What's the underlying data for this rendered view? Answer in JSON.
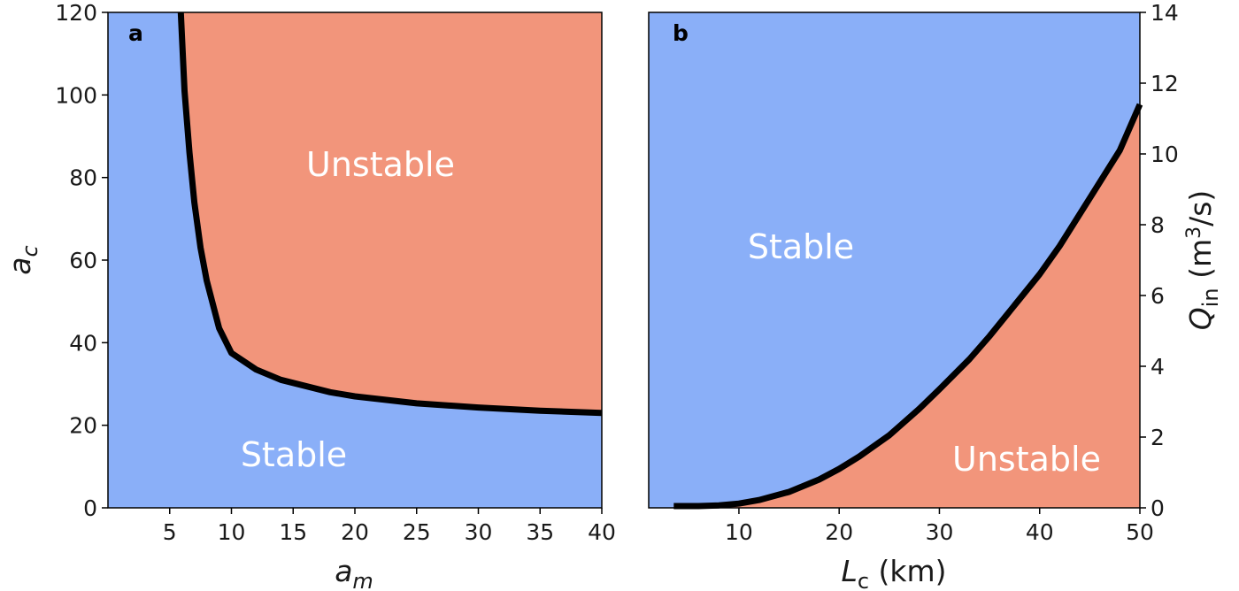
{
  "colors": {
    "stable": "#8aaff8",
    "unstable": "#f2957b",
    "boundary": "#000000"
  },
  "chart_data": [
    {
      "type": "area",
      "panel": "a",
      "xlabel_main": "a",
      "xlabel_sub": "m",
      "ylabel_main": "a",
      "ylabel_sub": "c",
      "xlim": [
        0,
        40
      ],
      "ylim": [
        0,
        120
      ],
      "xticks": [
        5,
        10,
        15,
        20,
        25,
        30,
        35,
        40
      ],
      "yticks": [
        0,
        20,
        40,
        60,
        80,
        100,
        120
      ],
      "y_axis_side": "left",
      "regions": [
        "Unstable",
        "Stable"
      ],
      "boundary": {
        "x": [
          5.9,
          6.2,
          6.6,
          7.0,
          7.5,
          8.0,
          9.0,
          10.0,
          12.0,
          14.0,
          16.0,
          18.0,
          20.0,
          25.0,
          30.0,
          35.0,
          40.0
        ],
        "y": [
          120,
          101,
          86,
          74,
          63,
          55,
          43.5,
          37.5,
          33.5,
          31.0,
          29.5,
          28.0,
          27.0,
          25.3,
          24.3,
          23.5,
          23.0
        ]
      }
    },
    {
      "type": "area",
      "panel": "b",
      "xlabel_main": "L",
      "xlabel_sub": "c",
      "xlabel_unit": " (km)",
      "ylabel_main": "Q",
      "ylabel_sub": "in",
      "ylabel_unit_open": " (m",
      "ylabel_unit_sup": "3",
      "ylabel_unit_close": "/s)",
      "xlim": [
        1,
        50
      ],
      "ylim": [
        0,
        14
      ],
      "xticks": [
        10,
        20,
        30,
        40,
        50
      ],
      "yticks": [
        0,
        2,
        4,
        6,
        8,
        10,
        12,
        14
      ],
      "y_axis_side": "right",
      "regions": [
        "Stable",
        "Unstable"
      ],
      "boundary": {
        "x": [
          3.5,
          6,
          8,
          10,
          12,
          15,
          18,
          20,
          22,
          25,
          28,
          30,
          33,
          35,
          38,
          40,
          42,
          45,
          48,
          50
        ],
        "y": [
          0.05,
          0.05,
          0.07,
          0.12,
          0.22,
          0.45,
          0.8,
          1.1,
          1.45,
          2.05,
          2.8,
          3.35,
          4.2,
          4.85,
          5.9,
          6.6,
          7.4,
          8.75,
          10.1,
          11.4
        ]
      }
    }
  ]
}
